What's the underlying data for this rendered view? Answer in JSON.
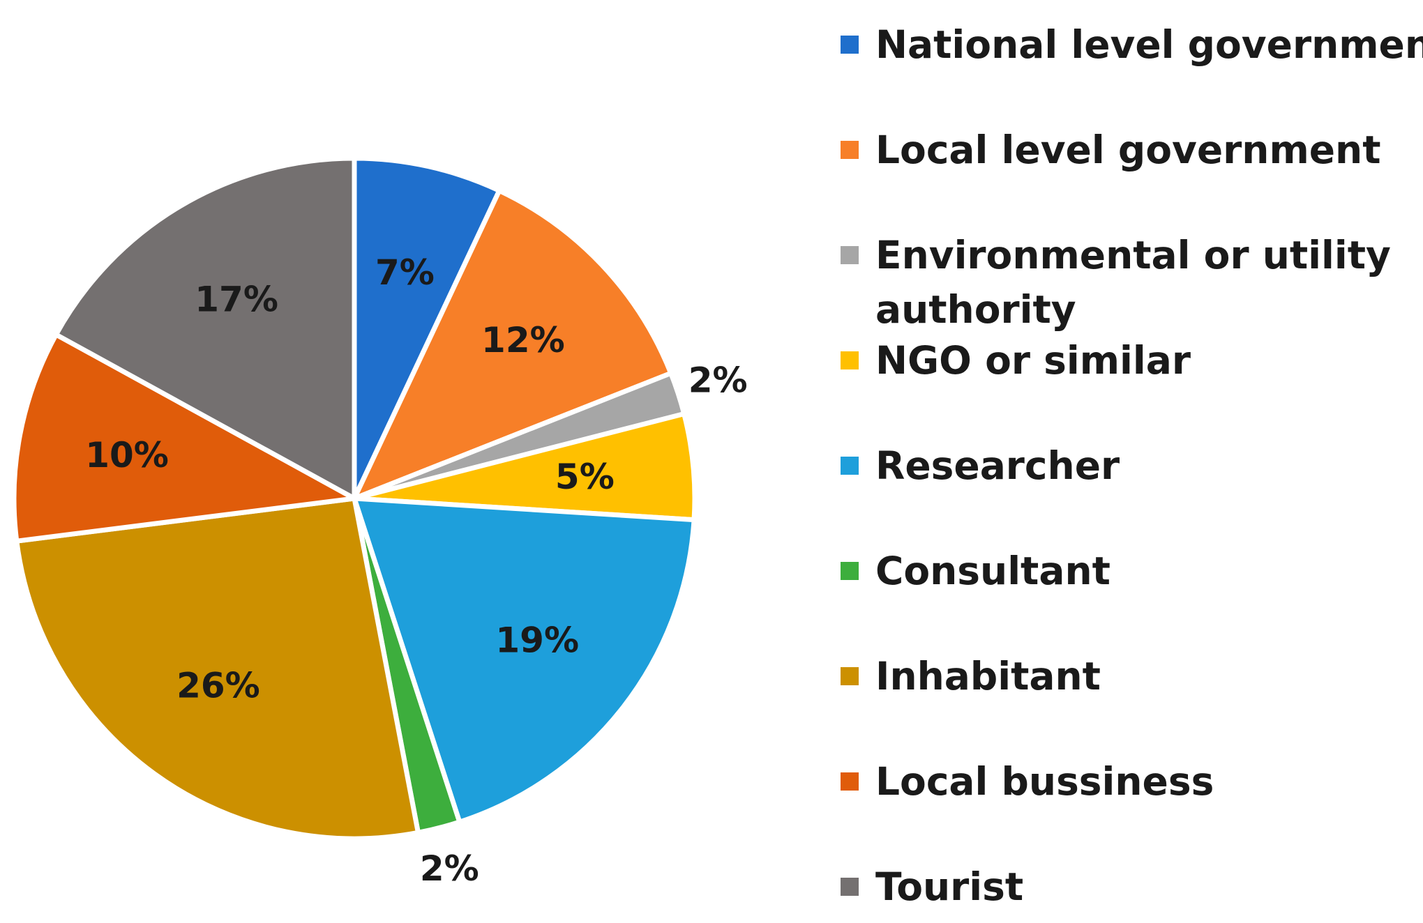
{
  "chart_data": {
    "type": "pie",
    "start_angle_deg": 0,
    "direction": "clockwise",
    "legend_position": "right",
    "categories": [
      "National level government",
      "Local level government",
      "Environmental or utility authority",
      "NGO or similar",
      "Researcher",
      "Consultant",
      "Inhabitant",
      "Local bussiness",
      "Tourist"
    ],
    "legend_lines": [
      [
        "National level government"
      ],
      [
        "Local level government"
      ],
      [
        "Environmental or utility",
        "authority"
      ],
      [
        "NGO or similar"
      ],
      [
        "Researcher"
      ],
      [
        "Consultant"
      ],
      [
        "Inhabitant"
      ],
      [
        "Local bussiness"
      ],
      [
        "Tourist"
      ]
    ],
    "values": [
      7,
      12,
      2,
      5,
      19,
      2,
      26,
      10,
      17
    ],
    "labels": [
      "7%",
      "12%",
      "2%",
      "5%",
      "19%",
      "2%",
      "26%",
      "10%",
      "17%"
    ],
    "label_outside": [
      false,
      false,
      true,
      false,
      false,
      true,
      false,
      false,
      false
    ],
    "colors": [
      "#1f6fcc",
      "#f77f28",
      "#a6a6a6",
      "#ffc000",
      "#1e9fdb",
      "#3dae3d",
      "#cc9000",
      "#e05c0a",
      "#747070"
    ]
  }
}
